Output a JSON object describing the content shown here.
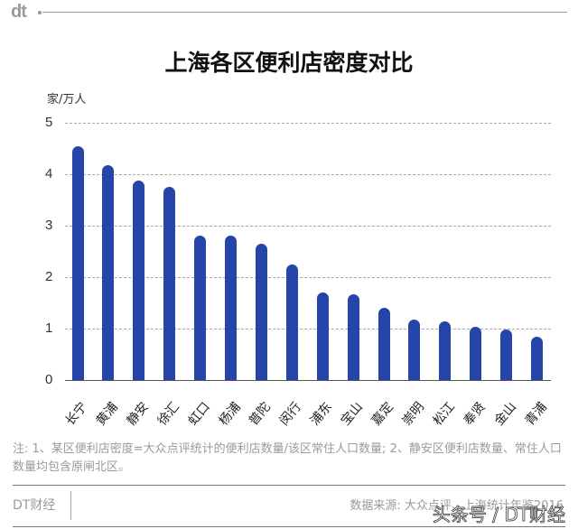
{
  "header": {
    "logo_text": "dt",
    "title": "上海各区便利店密度对比"
  },
  "chart_data": {
    "type": "bar",
    "title": "上海各区便利店密度对比",
    "xlabel": "",
    "ylabel": "家/万人",
    "ylim": [
      0,
      5
    ],
    "yticks": [
      0,
      1,
      2,
      3,
      4,
      5
    ],
    "grid": true,
    "bar_color": "#2545a8",
    "categories": [
      "长宁",
      "黄浦",
      "静安",
      "徐汇",
      "虹口",
      "杨浦",
      "普陀",
      "闵行",
      "浦东",
      "宝山",
      "嘉定",
      "崇明",
      "松江",
      "奉贤",
      "金山",
      "青浦"
    ],
    "values": [
      4.55,
      4.18,
      3.88,
      3.75,
      2.8,
      2.8,
      2.65,
      2.25,
      1.7,
      1.67,
      1.4,
      1.18,
      1.14,
      1.03,
      0.98,
      0.84
    ]
  },
  "axis": {
    "unit_label": "家/万人",
    "y_labels": [
      "0",
      "1",
      "2",
      "3",
      "4",
      "5"
    ]
  },
  "footer": {
    "note": "注: 1、某区便利店密度=大众点评统计的便利店数量/该区常住人口数量; 2、静安区便利店数量、常住人口数量均包含原闸北区。",
    "brand": "DT财经",
    "source": "数据来源: 大众点评、上海统计年鉴2016",
    "watermark": "头条号 / DT财经"
  }
}
